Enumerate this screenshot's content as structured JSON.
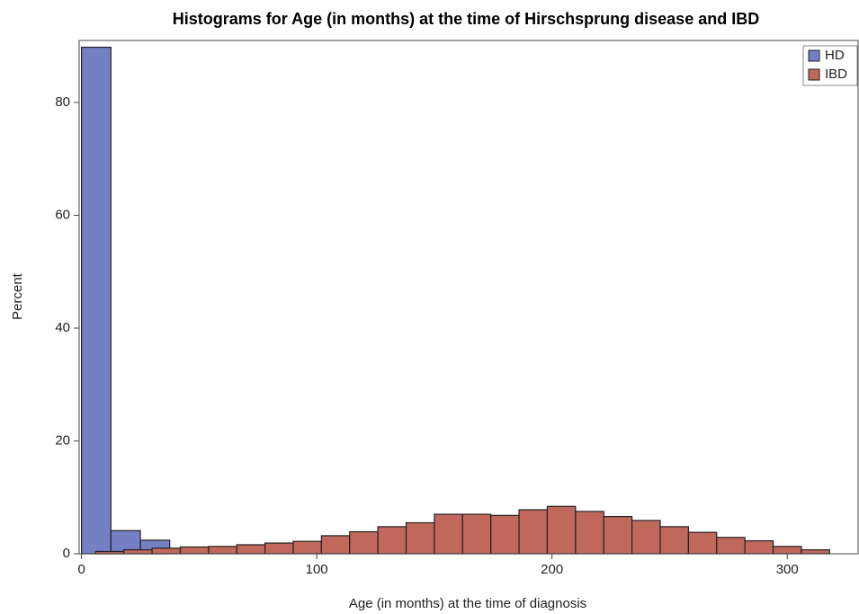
{
  "chart_data": {
    "type": "histogram",
    "title": "Histograms for Age (in months) at the time of Hirschsprung disease and IBD",
    "x_label": "Age (in months) at the time of diagnosis",
    "y_label": "Percent",
    "xlim": [
      -1,
      330.5
    ],
    "xticks": [
      0,
      100,
      200,
      300
    ],
    "ylim": [
      0,
      91
    ],
    "yticks": [
      0,
      20,
      40,
      60,
      80
    ],
    "legend": "top-right",
    "series": [
      {
        "name": "HD",
        "color": "#7580c4",
        "bins": [
          0,
          12.5,
          25,
          37.5
        ],
        "values": [
          89.8,
          4.1,
          2.4
        ]
      },
      {
        "name": "IBD",
        "color": "#c0685c",
        "bins": [
          6,
          18,
          30,
          42,
          54,
          66,
          78,
          90,
          102,
          114,
          126,
          138,
          150,
          162,
          174,
          186,
          198,
          210,
          222,
          234,
          246,
          258,
          270,
          282,
          294,
          306,
          318
        ],
        "values": [
          0.4,
          0.7,
          1.0,
          1.2,
          1.3,
          1.6,
          1.9,
          2.2,
          3.2,
          3.9,
          4.8,
          5.5,
          7.0,
          7.0,
          6.8,
          7.8,
          8.4,
          7.5,
          6.6,
          5.9,
          4.8,
          3.8,
          2.9,
          2.3,
          1.3,
          0.7
        ]
      }
    ]
  }
}
